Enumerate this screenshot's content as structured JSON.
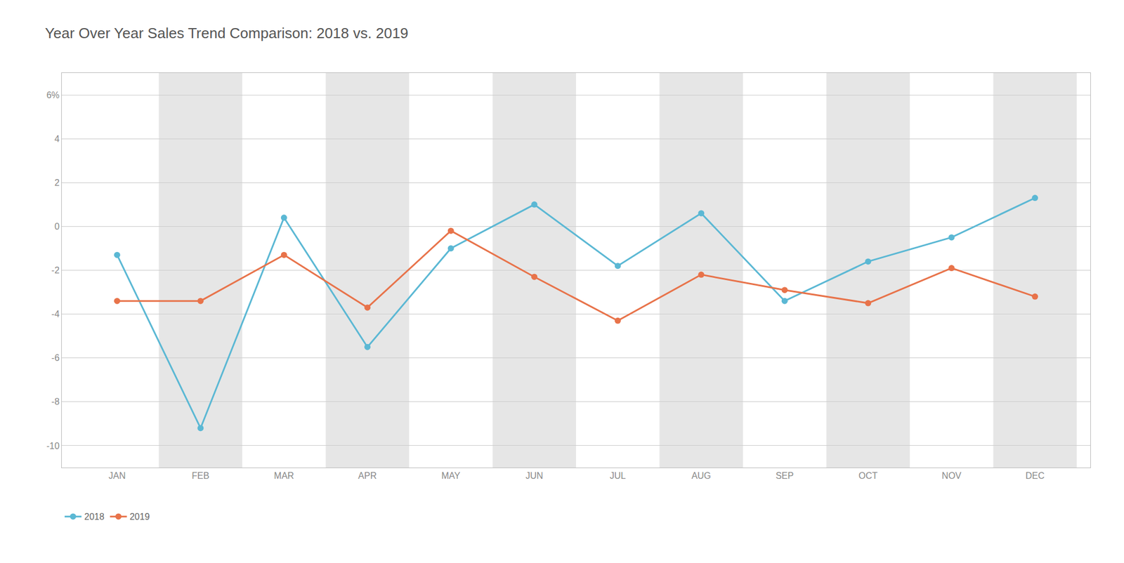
{
  "chart_data": {
    "type": "line",
    "title": "Year Over Year Sales Trend Comparison: 2018 vs. 2019",
    "categories": [
      "JAN",
      "FEB",
      "MAR",
      "APR",
      "MAY",
      "JUN",
      "JUL",
      "AUG",
      "SEP",
      "OCT",
      "NOV",
      "DEC"
    ],
    "series": [
      {
        "name": "2018",
        "color": "#5BB8D4",
        "values": [
          -1.3,
          -9.2,
          0.4,
          -5.5,
          -1.0,
          1.0,
          -1.8,
          0.6,
          -3.4,
          -1.6,
          -0.5,
          1.3
        ]
      },
      {
        "name": "2019",
        "color": "#E8734A",
        "values": [
          -3.4,
          -3.4,
          -1.3,
          -3.7,
          -0.2,
          -2.3,
          -4.3,
          -2.2,
          -2.9,
          -3.5,
          -1.9,
          -3.2
        ]
      }
    ],
    "ylim": [
      -11,
      7
    ],
    "yticks": [
      -10,
      -8,
      -6,
      -4,
      -2,
      0,
      2,
      4,
      {
        "value": 6,
        "label": "6%"
      }
    ],
    "grid": true,
    "legend": "lower left",
    "marker": "circle"
  }
}
